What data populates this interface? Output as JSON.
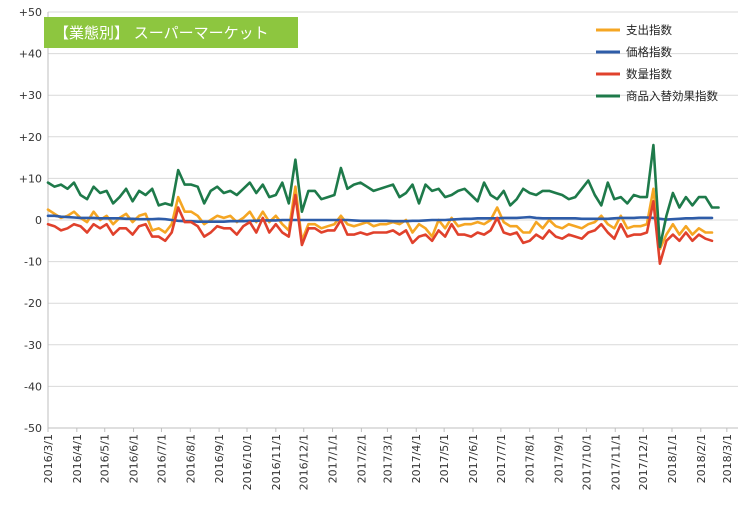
{
  "chart_data": {
    "type": "line",
    "title": "【業態別】 スーパーマーケット",
    "title_box_color": "#8dc63f",
    "ylim": [
      -50,
      50
    ],
    "yticks": [
      50,
      40,
      30,
      20,
      10,
      0,
      -10,
      -20,
      -30,
      -40,
      -50
    ],
    "ytick_labels": [
      "+50",
      "+40",
      "+30",
      "+20",
      "+10",
      "0",
      "-10",
      "-20",
      "-30",
      "-40",
      "-50"
    ],
    "grid": true,
    "legend_position": "top-right",
    "x_start": "2016-03-01",
    "x_step_days": 7,
    "xtick_labels": [
      "2016/3/1",
      "2016/4/1",
      "2016/5/1",
      "2016/6/1",
      "2016/7/1",
      "2016/8/1",
      "2016/9/1",
      "2016/10/1",
      "2016/11/1",
      "2016/12/1",
      "2017/1/1",
      "2017/2/1",
      "2017/3/1",
      "2017/4/1",
      "2017/5/1",
      "2017/6/1",
      "2017/7/1",
      "2017/8/1",
      "2017/9/1",
      "2017/10/1",
      "2017/11/1",
      "2017/12/1",
      "2018/1/1",
      "2018/2/1",
      "2018/3/1"
    ],
    "xlim": [
      "2016-03-01",
      "2018-03-13"
    ],
    "series": [
      {
        "name": "支出指数",
        "color": "#f5a623",
        "values": [
          2.5,
          1.5,
          0.5,
          1.0,
          2.0,
          0.5,
          -0.5,
          2.0,
          0.0,
          1.0,
          -1.0,
          0.5,
          1.5,
          -0.5,
          1.0,
          1.5,
          -2.5,
          -2.0,
          -3.0,
          -1.0,
          5.5,
          2.0,
          2.0,
          1.0,
          -1.0,
          0.0,
          1.0,
          0.5,
          1.0,
          -0.5,
          0.5,
          2.0,
          -0.5,
          2.0,
          -0.5,
          1.0,
          -1.0,
          -2.5,
          8.0,
          -5.0,
          -1.0,
          -1.0,
          -2.0,
          -1.5,
          -1.0,
          1.0,
          -1.0,
          -1.5,
          -1.0,
          -0.5,
          -1.5,
          -1.0,
          -1.0,
          -0.5,
          -1.0,
          0.0,
          -3.0,
          -1.0,
          -2.0,
          -4.0,
          0.0,
          -2.0,
          0.5,
          -1.5,
          -1.0,
          -1.0,
          -0.5,
          -1.0,
          0.0,
          3.0,
          -0.5,
          -1.5,
          -1.5,
          -3.0,
          -3.0,
          -0.5,
          -2.0,
          0.0,
          -1.5,
          -2.0,
          -1.0,
          -1.5,
          -2.0,
          -1.0,
          -0.5,
          1.0,
          -1.0,
          -2.0,
          1.0,
          -2.0,
          -1.5,
          -1.5,
          -1.0,
          7.5,
          -7.0,
          -3.5,
          -1.0,
          -3.5,
          -1.5,
          -3.5,
          -2.0,
          -3.0,
          -3.0
        ],
        "points_style": "line"
      },
      {
        "name": "価格指数",
        "color": "#2e5ca8",
        "values": [
          1.0,
          1.0,
          0.8,
          0.7,
          0.6,
          0.5,
          0.5,
          0.5,
          0.4,
          0.4,
          0.4,
          0.4,
          0.3,
          0.3,
          0.2,
          0.2,
          0.2,
          0.3,
          0.2,
          0.0,
          -0.2,
          -0.3,
          -0.3,
          -0.4,
          -0.4,
          -0.4,
          -0.4,
          -0.4,
          -0.3,
          -0.3,
          -0.3,
          -0.2,
          -0.2,
          -0.1,
          -0.1,
          -0.1,
          0.0,
          0.0,
          0.0,
          0.0,
          0.0,
          0.0,
          0.0,
          0.0,
          0.0,
          0.0,
          0.0,
          -0.1,
          -0.2,
          -0.2,
          -0.2,
          -0.2,
          -0.2,
          -0.3,
          -0.3,
          -0.3,
          -0.2,
          -0.2,
          -0.1,
          0.0,
          0.0,
          0.0,
          0.1,
          0.2,
          0.3,
          0.3,
          0.4,
          0.4,
          0.4,
          0.4,
          0.5,
          0.5,
          0.5,
          0.6,
          0.7,
          0.5,
          0.4,
          0.4,
          0.4,
          0.4,
          0.4,
          0.4,
          0.3,
          0.3,
          0.3,
          0.3,
          0.3,
          0.4,
          0.5,
          0.5,
          0.5,
          0.6,
          0.6,
          0.5,
          0.3,
          0.1,
          0.2,
          0.3,
          0.4,
          0.4,
          0.5,
          0.5,
          0.5
        ],
        "points_style": "line"
      },
      {
        "name": "数量指数",
        "color": "#e0412c",
        "values": [
          -1.0,
          -1.5,
          -2.5,
          -2.0,
          -1.0,
          -1.5,
          -3.0,
          -1.0,
          -2.0,
          -1.0,
          -3.5,
          -2.0,
          -2.0,
          -3.5,
          -1.5,
          -1.0,
          -4.0,
          -4.0,
          -5.0,
          -3.0,
          3.0,
          -0.5,
          -0.5,
          -1.5,
          -4.0,
          -3.0,
          -1.5,
          -2.0,
          -2.0,
          -3.5,
          -1.5,
          -0.5,
          -3.0,
          0.5,
          -3.0,
          -1.0,
          -3.0,
          -4.0,
          6.0,
          -6.0,
          -2.0,
          -2.0,
          -3.0,
          -2.5,
          -2.5,
          0.0,
          -3.5,
          -3.5,
          -3.0,
          -3.5,
          -3.0,
          -3.0,
          -3.0,
          -2.5,
          -3.5,
          -2.5,
          -5.5,
          -4.0,
          -3.5,
          -5.0,
          -2.5,
          -4.0,
          -1.0,
          -3.5,
          -3.5,
          -4.0,
          -3.0,
          -3.5,
          -2.5,
          0.5,
          -3.0,
          -3.5,
          -3.0,
          -5.5,
          -5.0,
          -3.5,
          -4.5,
          -2.5,
          -4.0,
          -4.5,
          -3.5,
          -4.0,
          -4.5,
          -3.0,
          -2.5,
          -1.0,
          -3.0,
          -4.5,
          -1.0,
          -4.0,
          -3.5,
          -3.5,
          -3.0,
          4.5,
          -10.5,
          -5.0,
          -3.5,
          -5.0,
          -3.0,
          -5.0,
          -3.5,
          -4.5,
          -5.0
        ],
        "points_style": "line"
      },
      {
        "name": "商品入替効果指数",
        "color": "#1e7a4a",
        "values": [
          9.0,
          8.0,
          8.5,
          7.5,
          9.0,
          6.0,
          5.0,
          8.0,
          6.5,
          7.0,
          4.0,
          5.5,
          7.5,
          4.5,
          7.0,
          6.0,
          7.5,
          3.5,
          4.0,
          3.5,
          12.0,
          8.5,
          8.5,
          8.0,
          4.0,
          7.0,
          8.0,
          6.5,
          7.0,
          6.0,
          7.5,
          9.0,
          6.5,
          8.5,
          5.5,
          6.0,
          9.0,
          4.0,
          14.5,
          2.0,
          7.0,
          7.0,
          5.0,
          5.5,
          6.0,
          12.5,
          7.5,
          8.5,
          9.0,
          8.0,
          7.0,
          7.5,
          8.0,
          8.5,
          5.5,
          6.5,
          8.5,
          4.0,
          8.5,
          7.0,
          7.5,
          5.5,
          6.0,
          7.0,
          7.5,
          6.0,
          4.5,
          9.0,
          6.0,
          5.0,
          7.0,
          3.5,
          5.0,
          7.5,
          6.5,
          6.0,
          7.0,
          7.0,
          6.5,
          6.0,
          5.0,
          5.5,
          7.5,
          9.5,
          6.0,
          3.5,
          9.0,
          5.0,
          5.5,
          4.0,
          6.0,
          5.5,
          5.5,
          18.0,
          -6.5,
          1.0,
          6.5,
          3.0,
          5.5,
          3.5,
          5.5,
          5.5,
          3.0,
          3.0
        ],
        "points_style": "line"
      }
    ]
  }
}
